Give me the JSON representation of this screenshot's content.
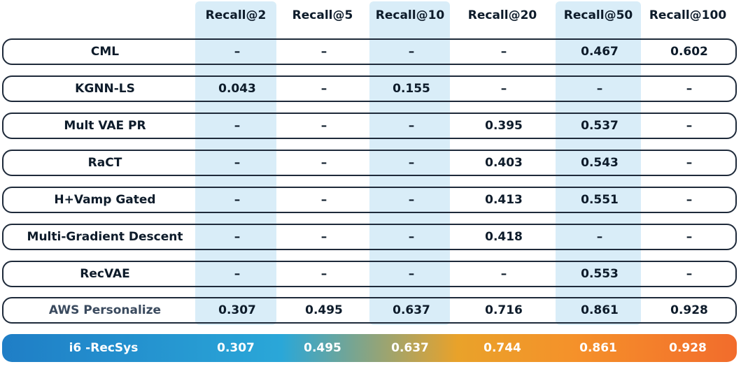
{
  "columns": [
    "Recall@2",
    "Recall@5",
    "Recall@10",
    "Recall@20",
    "Recall@50",
    "Recall@100"
  ],
  "rows": [
    {
      "label": "CML",
      "values": [
        "–",
        "–",
        "–",
        "–",
        "0.467",
        "0.602"
      ]
    },
    {
      "label": "KGNN-LS",
      "values": [
        "0.043",
        "–",
        "0.155",
        "–",
        "–",
        "–"
      ]
    },
    {
      "label": "Mult VAE PR",
      "values": [
        "–",
        "–",
        "–",
        "0.395",
        "0.537",
        "–"
      ]
    },
    {
      "label": "RaCT",
      "values": [
        "–",
        "–",
        "–",
        "0.403",
        "0.543",
        "–"
      ]
    },
    {
      "label": "H+Vamp Gated",
      "values": [
        "–",
        "–",
        "–",
        "0.413",
        "0.551",
        "–"
      ]
    },
    {
      "label": "Multi-Gradient Descent",
      "values": [
        "–",
        "–",
        "–",
        "0.418",
        "–",
        "–"
      ]
    },
    {
      "label": "RecVAE",
      "values": [
        "–",
        "–",
        "–",
        "–",
        "0.553",
        "–"
      ]
    },
    {
      "label": "AWS Personalize",
      "values": [
        "0.307",
        "0.495",
        "0.637",
        "0.716",
        "0.861",
        "0.928"
      ]
    },
    {
      "label": "i6 -RecSys",
      "values": [
        "0.307",
        "0.495",
        "0.637",
        "0.744",
        "0.861",
        "0.928"
      ]
    }
  ],
  "colors": {
    "highlight_column": "#d9edf8",
    "row_border": "#1e2a3a",
    "gradient_start": "#1f7ec6",
    "gradient_end": "#f26c2c"
  }
}
